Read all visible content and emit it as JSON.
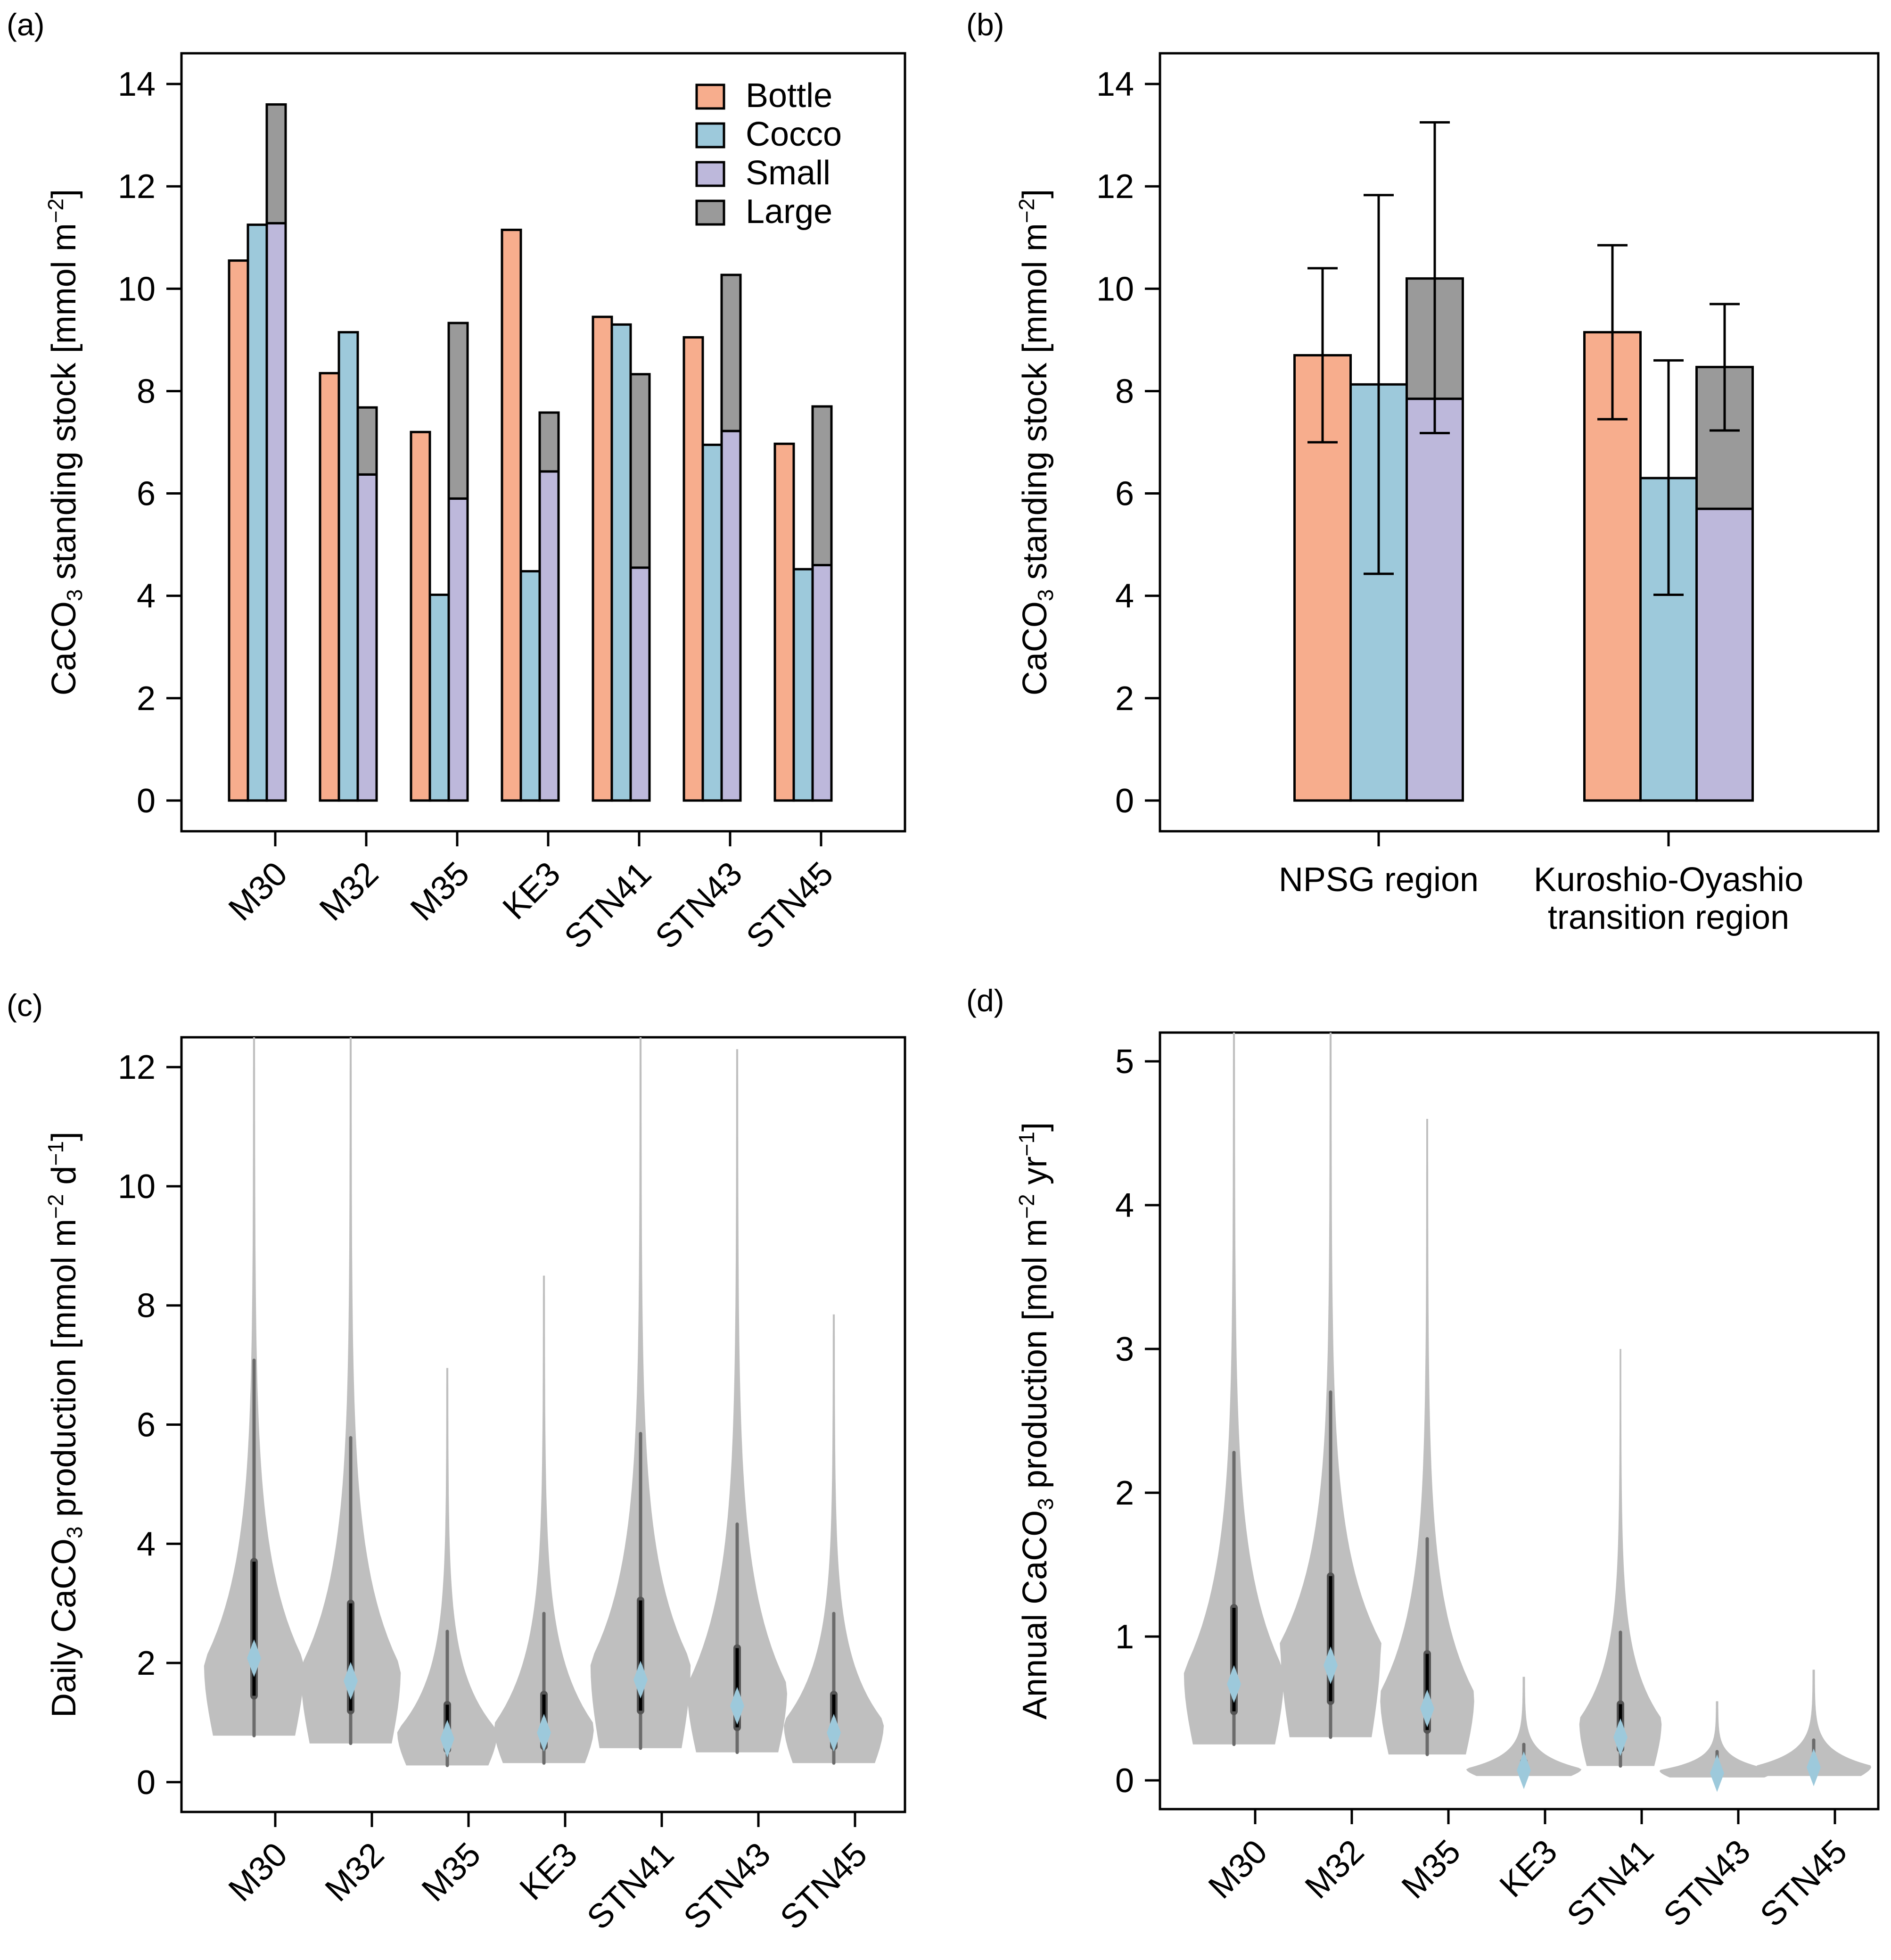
{
  "colors": {
    "bottle": "#f7ad8d",
    "cocco": "#9dc9db",
    "small": "#bdb8db",
    "large": "#9a9a9a",
    "violin": "#bfbfbf",
    "whisker": "#6b6b6b",
    "iqr": "#000000",
    "median": "#9dc9db"
  },
  "chart_data": [
    {
      "panel": "(a)",
      "type": "bar",
      "ylabel": "CaCO3 standing stock [mmol m-2]",
      "ylabel_parts": {
        "pre": "CaCO",
        "sub": "3",
        "mid": " standing stock [mmol m",
        "sup": "−2",
        "post": "]"
      },
      "ylim": [
        -0.6,
        14.6
      ],
      "yticks": [
        0,
        2,
        4,
        6,
        8,
        10,
        12,
        14
      ],
      "categories": [
        "M30",
        "M32",
        "M35",
        "KE3",
        "STN41",
        "STN43",
        "STN45"
      ],
      "legend": {
        "position": "top-right",
        "entries": [
          "Bottle",
          "Cocco",
          "Small",
          "Large"
        ]
      },
      "series": [
        {
          "name": "Bottle",
          "values": [
            10.55,
            8.35,
            7.2,
            11.15,
            9.45,
            9.05,
            6.97
          ]
        },
        {
          "name": "Cocco",
          "values": [
            11.25,
            9.15,
            4.02,
            4.48,
            9.3,
            6.95,
            4.52
          ]
        },
        {
          "name": "Small",
          "values": [
            11.28,
            6.37,
            5.9,
            6.43,
            4.55,
            7.22,
            4.6
          ]
        },
        {
          "name": "Large",
          "stacked_on": "Small",
          "values": [
            2.32,
            1.31,
            3.43,
            1.15,
            3.78,
            3.05,
            3.1
          ]
        }
      ]
    },
    {
      "panel": "(b)",
      "type": "bar",
      "ylabel": "CaCO3 standing stock [mmol m-2]",
      "ylabel_parts": {
        "pre": "CaCO",
        "sub": "3",
        "mid": " standing stock [mmol m",
        "sup": "−2",
        "post": "]"
      },
      "ylim": [
        -0.6,
        14.6
      ],
      "yticks": [
        0,
        2,
        4,
        6,
        8,
        10,
        12,
        14
      ],
      "categories": [
        "NPSG region",
        "Kuroshio-Oyashio transition region"
      ],
      "category_lines": [
        [
          "NPSG region"
        ],
        [
          "Kuroshio-Oyashio",
          "transition region"
        ]
      ],
      "series": [
        {
          "name": "Bottle",
          "values": [
            8.7,
            9.15
          ],
          "err_low": [
            7.0,
            7.45
          ],
          "err_high": [
            10.4,
            10.85
          ]
        },
        {
          "name": "Cocco",
          "values": [
            8.13,
            6.3
          ],
          "err_low": [
            4.43,
            4.02
          ],
          "err_high": [
            11.83,
            8.6
          ]
        },
        {
          "name": "Small",
          "values": [
            7.85,
            5.7
          ]
        },
        {
          "name": "Large",
          "stacked_on": "Small",
          "values": [
            2.35,
            2.77
          ],
          "total_err_low": [
            7.18,
            7.23
          ],
          "total_err_high": [
            13.25,
            9.7
          ]
        }
      ]
    },
    {
      "panel": "(c)",
      "type": "violin",
      "ylabel": "Daily CaCO3 production [mmol m-2 d-1]",
      "ylabel_parts": {
        "pre": "Daily CaCO",
        "sub": "3",
        "mid": " production [mmol m",
        "sup": "−2",
        "mid2": " d",
        "sup2": "−1",
        "post": "]"
      },
      "ylim": [
        -0.5,
        12.5
      ],
      "yticks": [
        0,
        2,
        4,
        6,
        8,
        10,
        12
      ],
      "categories": [
        "M30",
        "M32",
        "M35",
        "KE3",
        "STN41",
        "STN43",
        "STN45"
      ],
      "violins": [
        {
          "min": 0.78,
          "max": 12.5,
          "q1": 1.45,
          "q3": 3.7,
          "whisker_low": 0.78,
          "whisker_high": 7.08,
          "median": 2.08,
          "mode": 2.0,
          "max_halfwidth": 0.85
        },
        {
          "min": 0.65,
          "max": 12.5,
          "q1": 1.2,
          "q3": 3.0,
          "whisker_low": 0.65,
          "whisker_high": 5.78,
          "median": 1.7,
          "mode": 1.9,
          "max_halfwidth": 0.85
        },
        {
          "min": 0.28,
          "max": 6.95,
          "q1": 0.55,
          "q3": 1.3,
          "whisker_low": 0.28,
          "whisker_high": 2.53,
          "median": 0.73,
          "mode": 0.85,
          "max_halfwidth": 0.85
        },
        {
          "min": 0.32,
          "max": 8.5,
          "q1": 0.6,
          "q3": 1.47,
          "whisker_low": 0.32,
          "whisker_high": 2.83,
          "median": 0.83,
          "mode": 0.95,
          "max_halfwidth": 0.85
        },
        {
          "min": 0.57,
          "max": 12.5,
          "q1": 1.2,
          "q3": 3.05,
          "whisker_low": 0.57,
          "whisker_high": 5.85,
          "median": 1.72,
          "mode": 2.0,
          "max_halfwidth": 0.85
        },
        {
          "min": 0.5,
          "max": 12.3,
          "q1": 0.92,
          "q3": 2.25,
          "whisker_low": 0.5,
          "whisker_high": 4.33,
          "median": 1.28,
          "mode": 1.6,
          "max_halfwidth": 0.85
        },
        {
          "min": 0.32,
          "max": 7.85,
          "q1": 0.6,
          "q3": 1.47,
          "whisker_low": 0.32,
          "whisker_high": 2.83,
          "median": 0.83,
          "mode": 1.0,
          "max_halfwidth": 0.85
        }
      ]
    },
    {
      "panel": "(d)",
      "type": "violin",
      "ylabel": "Annual CaCO3 production [mol m-2 yr-1]",
      "ylabel_parts": {
        "pre": "Annual CaCO",
        "sub": "3",
        "mid": " production [mol m",
        "sup": "−2",
        "mid2": " yr",
        "sup2": "−1",
        "post": "]"
      },
      "ylim": [
        -0.2,
        5.2
      ],
      "yticks": [
        0,
        1,
        2,
        3,
        4,
        5
      ],
      "categories": [
        "M30",
        "M32",
        "M35",
        "KE3",
        "STN41",
        "STN43",
        "STN45"
      ],
      "violins": [
        {
          "min": 0.25,
          "max": 5.2,
          "q1": 0.48,
          "q3": 1.2,
          "whisker_low": 0.25,
          "whisker_high": 2.28,
          "median": 0.67,
          "mode": 0.75,
          "max_halfwidth": 0.85
        },
        {
          "min": 0.3,
          "max": 5.2,
          "q1": 0.55,
          "q3": 1.42,
          "whisker_low": 0.3,
          "whisker_high": 2.7,
          "median": 0.8,
          "mode": 0.95,
          "max_halfwidth": 0.85
        },
        {
          "min": 0.18,
          "max": 4.6,
          "q1": 0.35,
          "q3": 0.88,
          "whisker_low": 0.18,
          "whisker_high": 1.68,
          "median": 0.5,
          "mode": 0.6,
          "max_halfwidth": 0.8
        },
        {
          "min": 0.03,
          "max": 0.72,
          "q1": 0.05,
          "q3": 0.13,
          "whisker_low": 0.03,
          "whisker_high": 0.25,
          "median": 0.07,
          "mode": 0.08,
          "max_halfwidth": 0.7
        },
        {
          "min": 0.1,
          "max": 3.0,
          "q1": 0.22,
          "q3": 0.53,
          "whisker_low": 0.1,
          "whisker_high": 1.03,
          "median": 0.3,
          "mode": 0.42,
          "max_halfwidth": 0.7
        },
        {
          "min": 0.02,
          "max": 0.55,
          "q1": 0.04,
          "q3": 0.1,
          "whisker_low": 0.02,
          "whisker_high": 0.2,
          "median": 0.05,
          "mode": 0.07,
          "max_halfwidth": 0.7
        },
        {
          "min": 0.03,
          "max": 0.77,
          "q1": 0.06,
          "q3": 0.14,
          "whisker_low": 0.03,
          "whisker_high": 0.28,
          "median": 0.09,
          "mode": 0.1,
          "max_halfwidth": 0.7
        }
      ]
    }
  ]
}
